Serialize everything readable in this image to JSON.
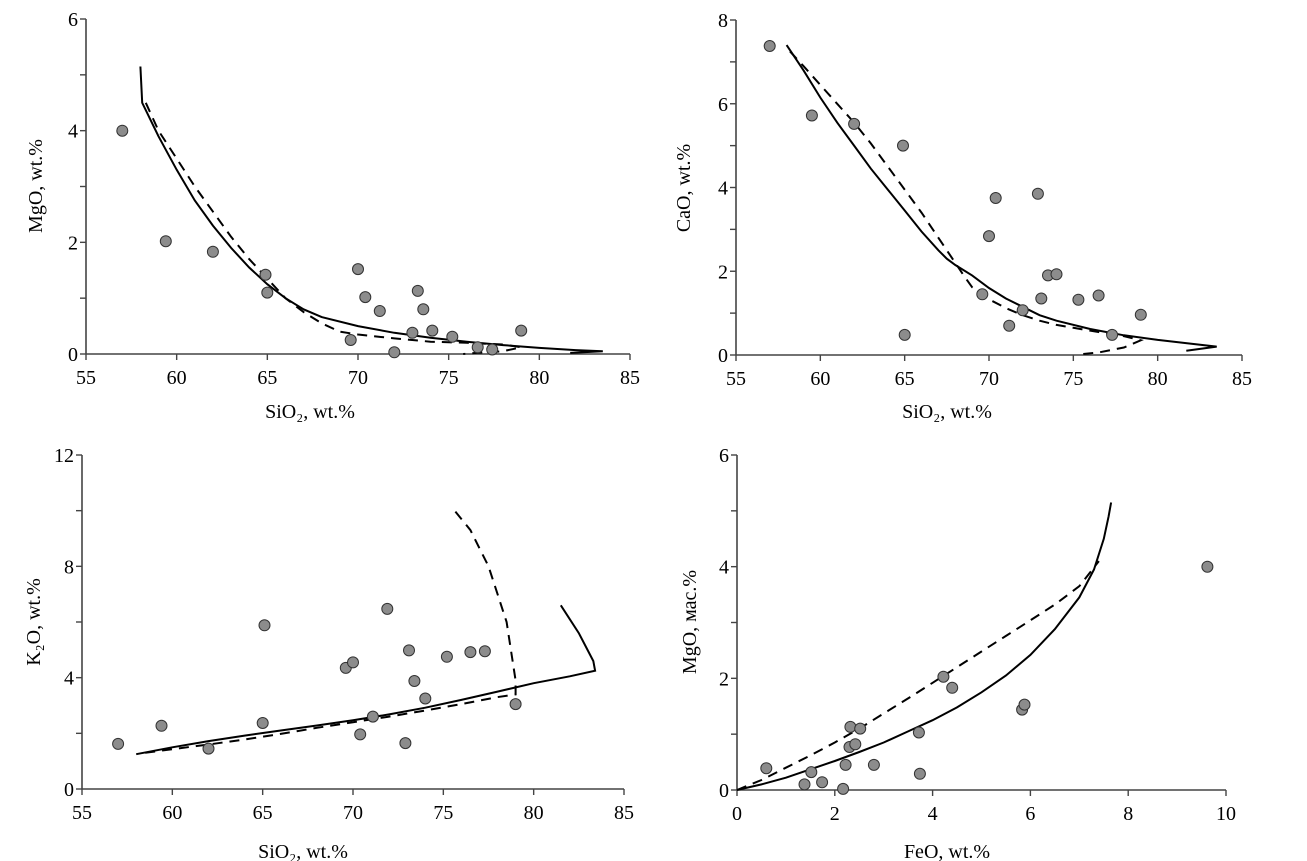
{
  "chart_data": [
    {
      "type": "scatter",
      "id": "mgo-sio2",
      "xlabel": "SiO₂, wt.%",
      "ylabel": "MgO, wt.%",
      "xlim": [
        55,
        85
      ],
      "ylim": [
        0,
        6
      ],
      "xticks": [
        55,
        60,
        65,
        70,
        75,
        80,
        85
      ],
      "yticks": [
        0,
        2,
        4,
        6
      ],
      "yminor": [
        1,
        3,
        5
      ],
      "grid": false,
      "points": [
        [
          57.0,
          4.0
        ],
        [
          59.4,
          2.02
        ],
        [
          62.0,
          1.83
        ],
        [
          64.9,
          1.42
        ],
        [
          65.0,
          1.1
        ],
        [
          70.0,
          1.52
        ],
        [
          70.4,
          1.02
        ],
        [
          71.2,
          0.77
        ],
        [
          69.6,
          0.25
        ],
        [
          72.0,
          0.03
        ],
        [
          73.0,
          0.38
        ],
        [
          73.3,
          1.13
        ],
        [
          73.6,
          0.8
        ],
        [
          74.1,
          0.42
        ],
        [
          75.2,
          0.31
        ],
        [
          79.0,
          0.42
        ],
        [
          76.6,
          0.12
        ],
        [
          77.4,
          0.08
        ]
      ],
      "solid_curve": [
        [
          58.0,
          5.15
        ],
        [
          58.1,
          4.5
        ],
        [
          59,
          3.9
        ],
        [
          60,
          3.3
        ],
        [
          61,
          2.75
        ],
        [
          62,
          2.3
        ],
        [
          63,
          1.9
        ],
        [
          64,
          1.55
        ],
        [
          65,
          1.25
        ],
        [
          66,
          1.0
        ],
        [
          67,
          0.8
        ],
        [
          68,
          0.66
        ],
        [
          70,
          0.5
        ],
        [
          72,
          0.38
        ],
        [
          74,
          0.29
        ],
        [
          76,
          0.22
        ],
        [
          78,
          0.16
        ],
        [
          80,
          0.11
        ],
        [
          82,
          0.07
        ],
        [
          83.5,
          0.05
        ],
        [
          81.7,
          0.02
        ]
      ],
      "dashed_curve": [
        [
          58.3,
          4.5
        ],
        [
          59,
          4.0
        ],
        [
          60,
          3.5
        ],
        [
          61,
          3.0
        ],
        [
          62,
          2.55
        ],
        [
          63,
          2.1
        ],
        [
          64,
          1.7
        ],
        [
          65,
          1.35
        ],
        [
          66,
          1.0
        ],
        [
          67,
          0.75
        ],
        [
          68,
          0.55
        ],
        [
          69,
          0.4
        ],
        [
          70,
          0.35
        ],
        [
          72,
          0.28
        ],
        [
          74,
          0.22
        ],
        [
          76,
          0.2
        ],
        [
          78,
          0.17
        ],
        [
          79.0,
          0.12
        ],
        [
          78,
          0.05
        ],
        [
          76.5,
          0.02
        ],
        [
          75.8,
          0.0
        ]
      ]
    },
    {
      "type": "scatter",
      "id": "cao-sio2",
      "xlabel": "SiO₂, wt.%",
      "ylabel": "CaO, wt.%",
      "xlim": [
        55,
        85
      ],
      "ylim": [
        0,
        8
      ],
      "xticks": [
        55,
        60,
        65,
        70,
        75,
        80,
        85
      ],
      "yticks": [
        0,
        2,
        4,
        6,
        8
      ],
      "yminor": [
        1,
        3,
        5,
        7
      ],
      "grid": false,
      "points": [
        [
          57.0,
          7.38
        ],
        [
          59.5,
          5.72
        ],
        [
          62.0,
          5.52
        ],
        [
          64.9,
          5.0
        ],
        [
          65.0,
          0.48
        ],
        [
          70.4,
          3.75
        ],
        [
          70.0,
          2.84
        ],
        [
          72.9,
          3.85
        ],
        [
          69.6,
          1.45
        ],
        [
          73.1,
          1.35
        ],
        [
          71.2,
          0.7
        ],
        [
          73.5,
          1.9
        ],
        [
          74.0,
          1.93
        ],
        [
          72.0,
          1.07
        ],
        [
          75.3,
          1.32
        ],
        [
          76.5,
          1.42
        ],
        [
          79.0,
          0.96
        ],
        [
          77.3,
          0.48
        ]
      ],
      "solid_curve": [
        [
          58.0,
          7.4
        ],
        [
          59,
          6.8
        ],
        [
          60,
          6.15
        ],
        [
          61,
          5.55
        ],
        [
          62,
          5.0
        ],
        [
          63,
          4.45
        ],
        [
          64,
          3.95
        ],
        [
          65,
          3.45
        ],
        [
          66,
          2.95
        ],
        [
          67,
          2.5
        ],
        [
          67.5,
          2.3
        ],
        [
          68,
          2.15
        ],
        [
          69,
          1.9
        ],
        [
          70,
          1.6
        ],
        [
          71,
          1.35
        ],
        [
          72,
          1.15
        ],
        [
          73,
          0.95
        ],
        [
          74,
          0.82
        ],
        [
          76,
          0.62
        ],
        [
          78,
          0.47
        ],
        [
          80,
          0.36
        ],
        [
          82,
          0.27
        ],
        [
          83.5,
          0.2
        ],
        [
          81.7,
          0.1
        ]
      ],
      "dashed_curve": [
        [
          58.2,
          7.25
        ],
        [
          59,
          6.9
        ],
        [
          60,
          6.45
        ],
        [
          61,
          6.0
        ],
        [
          62,
          5.55
        ],
        [
          63,
          5.05
        ],
        [
          64,
          4.5
        ],
        [
          65,
          3.95
        ],
        [
          66,
          3.4
        ],
        [
          67,
          2.8
        ],
        [
          68,
          2.2
        ],
        [
          68.5,
          1.9
        ],
        [
          69,
          1.62
        ],
        [
          70,
          1.33
        ],
        [
          71,
          1.12
        ],
        [
          72,
          0.95
        ],
        [
          73,
          0.82
        ],
        [
          74,
          0.72
        ],
        [
          76,
          0.58
        ],
        [
          78,
          0.45
        ],
        [
          79.0,
          0.35
        ],
        [
          78,
          0.18
        ],
        [
          76.5,
          0.06
        ],
        [
          75.5,
          0.02
        ]
      ]
    },
    {
      "type": "scatter",
      "id": "k2o-sio2",
      "xlabel": "SiO₂, wt.%",
      "ylabel": "K₂O, wt.%",
      "xlim": [
        55,
        85
      ],
      "ylim": [
        0,
        12
      ],
      "xticks": [
        55,
        60,
        65,
        70,
        75,
        80,
        85
      ],
      "yticks": [
        0,
        4,
        8,
        12
      ],
      "yminor": [
        2,
        6,
        10
      ],
      "grid": false,
      "points": [
        [
          57.0,
          1.62
        ],
        [
          59.4,
          2.27
        ],
        [
          62.0,
          1.45
        ],
        [
          65.1,
          5.88
        ],
        [
          65.0,
          2.37
        ],
        [
          69.6,
          4.35
        ],
        [
          70.0,
          4.55
        ],
        [
          71.9,
          6.47
        ],
        [
          71.1,
          2.6
        ],
        [
          70.4,
          1.96
        ],
        [
          73.1,
          4.98
        ],
        [
          73.4,
          3.88
        ],
        [
          72.9,
          1.65
        ],
        [
          74.0,
          3.25
        ],
        [
          75.2,
          4.75
        ],
        [
          76.5,
          4.92
        ],
        [
          77.3,
          4.95
        ],
        [
          79.0,
          3.05
        ]
      ],
      "solid_curve": [
        [
          58.0,
          1.25
        ],
        [
          60,
          1.5
        ],
        [
          62,
          1.72
        ],
        [
          64,
          1.92
        ],
        [
          66,
          2.1
        ],
        [
          68,
          2.28
        ],
        [
          70,
          2.47
        ],
        [
          72,
          2.68
        ],
        [
          74,
          2.92
        ],
        [
          76,
          3.2
        ],
        [
          78,
          3.5
        ],
        [
          80,
          3.8
        ],
        [
          82,
          4.05
        ],
        [
          83.4,
          4.25
        ],
        [
          83.3,
          4.6
        ],
        [
          82.5,
          5.6
        ],
        [
          81.5,
          6.6
        ]
      ],
      "dashed_curve": [
        [
          58.5,
          1.3
        ],
        [
          60,
          1.43
        ],
        [
          62,
          1.6
        ],
        [
          64,
          1.78
        ],
        [
          66,
          1.98
        ],
        [
          68,
          2.2
        ],
        [
          70,
          2.4
        ],
        [
          72,
          2.6
        ],
        [
          74,
          2.82
        ],
        [
          76,
          3.05
        ],
        [
          78,
          3.3
        ],
        [
          79.0,
          3.4
        ],
        [
          79.0,
          3.9
        ],
        [
          78.5,
          6.0
        ],
        [
          77.5,
          8.0
        ],
        [
          76.5,
          9.3
        ],
        [
          75.5,
          10.1
        ]
      ]
    },
    {
      "type": "scatter",
      "id": "mgo-feo",
      "xlabel": "FeO, wt.%",
      "ylabel": "MgO, мас.%",
      "xlim": [
        0,
        10
      ],
      "ylim": [
        0,
        6
      ],
      "xticks": [
        0,
        2,
        4,
        6,
        8,
        10
      ],
      "yticks": [
        0,
        2,
        4,
        6
      ],
      "yminor": [
        1,
        3,
        5
      ],
      "grid": false,
      "points": [
        [
          0.6,
          0.39
        ],
        [
          1.38,
          0.1
        ],
        [
          1.52,
          0.32
        ],
        [
          1.74,
          0.14
        ],
        [
          2.17,
          0.02
        ],
        [
          2.22,
          0.45
        ],
        [
          2.3,
          0.77
        ],
        [
          2.32,
          1.13
        ],
        [
          2.42,
          0.82
        ],
        [
          2.52,
          1.1
        ],
        [
          2.8,
          0.45
        ],
        [
          3.72,
          1.03
        ],
        [
          3.74,
          0.29
        ],
        [
          4.22,
          2.03
        ],
        [
          4.4,
          1.83
        ],
        [
          5.83,
          1.44
        ],
        [
          5.88,
          1.53
        ],
        [
          9.62,
          4.0
        ]
      ],
      "solid_curve": [
        [
          0,
          0
        ],
        [
          0.5,
          0.1
        ],
        [
          1,
          0.22
        ],
        [
          1.5,
          0.37
        ],
        [
          2,
          0.52
        ],
        [
          2.5,
          0.68
        ],
        [
          3,
          0.85
        ],
        [
          3.5,
          1.05
        ],
        [
          4,
          1.25
        ],
        [
          4.5,
          1.48
        ],
        [
          5,
          1.75
        ],
        [
          5.5,
          2.05
        ],
        [
          6,
          2.42
        ],
        [
          6.5,
          2.88
        ],
        [
          7,
          3.45
        ],
        [
          7.3,
          3.95
        ],
        [
          7.5,
          4.5
        ],
        [
          7.6,
          4.9
        ],
        [
          7.65,
          5.15
        ]
      ],
      "dashed_curve": [
        [
          0,
          0
        ],
        [
          0.5,
          0.18
        ],
        [
          1,
          0.4
        ],
        [
          1.5,
          0.62
        ],
        [
          2,
          0.85
        ],
        [
          2.5,
          1.1
        ],
        [
          3,
          1.37
        ],
        [
          3.5,
          1.64
        ],
        [
          4,
          1.92
        ],
        [
          4.5,
          2.2
        ],
        [
          5,
          2.48
        ],
        [
          5.5,
          2.76
        ],
        [
          6,
          3.04
        ],
        [
          6.5,
          3.32
        ],
        [
          7,
          3.65
        ],
        [
          7.4,
          4.1
        ]
      ]
    }
  ]
}
